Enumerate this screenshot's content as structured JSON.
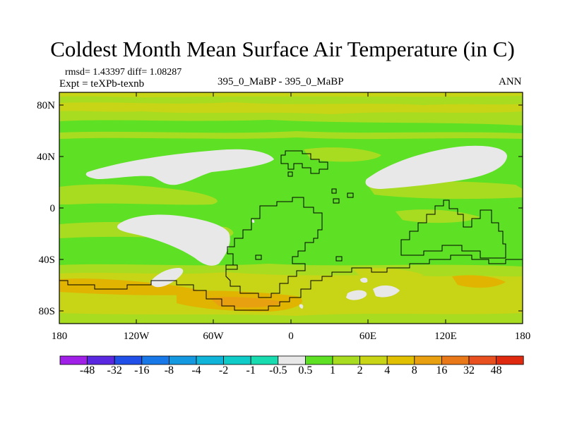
{
  "title": "Coldest Month Mean Surface Air Temperature (in C)",
  "stats": {
    "rmsd_line": "rmsd= 1.43397  diff= 1.08287"
  },
  "experiment": {
    "label": "Expt = teXPb-texnb"
  },
  "center_label": "395_0_MaBP - 395_0_MaBP",
  "season": "ANN",
  "map": {
    "lat_labels": [
      "80N",
      "40N",
      "0",
      "40S",
      "80S"
    ],
    "lon_labels": [
      "180",
      "120W",
      "60W",
      "0",
      "60E",
      "120E",
      "180"
    ],
    "colors": {
      "main_fill": "#5ee024",
      "yellow_green": "#a8dc20",
      "olive": "#c8d416",
      "ochre": "#e0b400",
      "orange": "#e8a010",
      "neutral": "#e8e8e8",
      "outline": "#000000"
    }
  },
  "colorbar": {
    "labels": [
      "-48",
      "-32",
      "-16",
      "-8",
      "-4",
      "-2",
      "-1",
      "-0.5",
      "0.5",
      "1",
      "2",
      "4",
      "8",
      "16",
      "32",
      "48"
    ],
    "colors": [
      "#a020e8",
      "#5a28e0",
      "#2050e8",
      "#1878e8",
      "#1498e0",
      "#10b4d8",
      "#10ccc8",
      "#18dcb0",
      "#e8e8e8",
      "#5ee024",
      "#a8dc20",
      "#c8d416",
      "#e0c000",
      "#e8a010",
      "#e87818",
      "#e85020",
      "#e02a10"
    ]
  }
}
